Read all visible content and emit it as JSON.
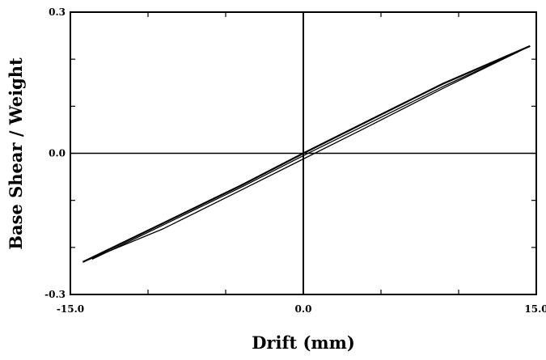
{
  "chart_data": {
    "type": "line",
    "title": "",
    "xlabel": "Drift (mm)",
    "ylabel": "Base Shear / Weight",
    "xlim": [
      -15.0,
      15.0
    ],
    "ylim": [
      -0.3,
      0.3
    ],
    "x_ticks": [
      -15.0,
      0.0,
      15.0
    ],
    "x_tick_labels": [
      "-15.0",
      "0.0",
      "15.0"
    ],
    "y_ticks": [
      -0.3,
      0.0,
      0.3
    ],
    "y_tick_labels": [
      "-0.3",
      "0.0",
      "0.3"
    ],
    "grid": false,
    "zero_lines": true,
    "line_color": "#000000",
    "series": [
      {
        "x": [
          -14.2,
          -9.0,
          -4.0,
          0.0,
          4.0,
          9.0,
          14.6
        ],
        "y": [
          -0.231,
          -0.148,
          -0.068,
          0.0,
          0.066,
          0.148,
          0.228
        ]
      },
      {
        "x": [
          14.6,
          9.0,
          4.0,
          0.0,
          -4.0,
          -9.0,
          -14.2
        ],
        "y": [
          0.228,
          0.138,
          0.054,
          -0.012,
          -0.078,
          -0.16,
          -0.231
        ]
      },
      {
        "x": [
          -13.6,
          -9.0,
          -4.0,
          0.0,
          4.0,
          9.0,
          13.8
        ],
        "y": [
          -0.225,
          -0.152,
          -0.072,
          -0.005,
          0.06,
          0.142,
          0.215
        ]
      }
    ]
  }
}
